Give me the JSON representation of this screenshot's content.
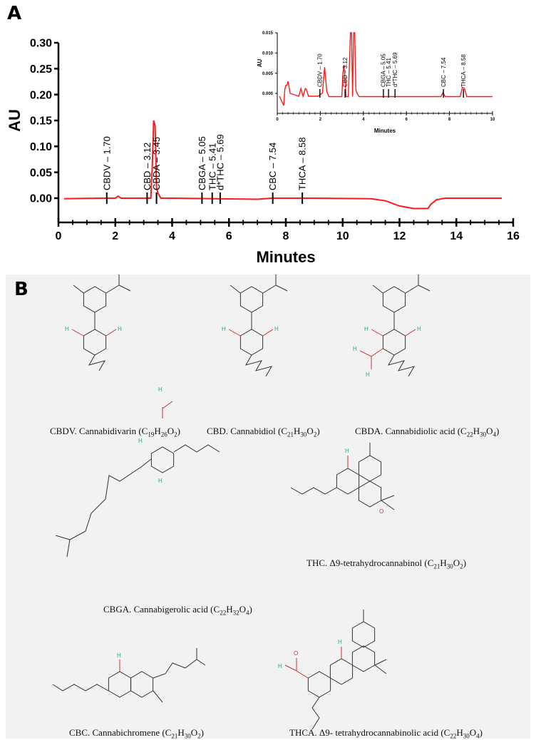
{
  "panel_a": {
    "letter": "A"
  },
  "panel_b": {
    "letter": "B"
  },
  "chart_data": [
    {
      "type": "line",
      "xlabel": "Minutes",
      "ylabel": "AU",
      "xlim": [
        0,
        16
      ],
      "ylim": [
        -0.03,
        0.3
      ],
      "xticks": [
        "0",
        "2",
        "4",
        "6",
        "8",
        "10",
        "12",
        "14",
        "16"
      ],
      "yticks": [
        "0.00",
        "0.05",
        "0.10",
        "0.15",
        "0.20",
        "0.25",
        "0.30"
      ],
      "grid": false,
      "line_color": "#ff1a1a",
      "series": [
        {
          "x": [
            0.2,
            1.5,
            2.0,
            2.1,
            2.2,
            3.0,
            3.25,
            3.3,
            3.35,
            3.4,
            3.45,
            3.5,
            3.6,
            4.0,
            7.0,
            7.5,
            9.0,
            11.0,
            11.5,
            12.0,
            12.5,
            13.0,
            13.1,
            13.3,
            13.6,
            15.6
          ],
          "y": [
            -0.001,
            0,
            0,
            0.004,
            0,
            0,
            0,
            0.06,
            0.15,
            0.14,
            0.02,
            0.01,
            0,
            0,
            -0.002,
            0,
            0,
            -0.001,
            -0.005,
            -0.015,
            -0.02,
            -0.02,
            -0.012,
            -0.003,
            0,
            0
          ]
        }
      ],
      "peak_labels": [
        {
          "label": "CBDV – 1.70",
          "x": 1.7
        },
        {
          "label": "CBD – 3.12",
          "x": 3.12
        },
        {
          "label": "CBDA – 3.45",
          "x": 3.45
        },
        {
          "label": "CBGA – 5.05",
          "x": 5.05
        },
        {
          "label": "THC – 5.41",
          "x": 5.41
        },
        {
          "label": "d*THC – 5.69",
          "x": 5.69
        },
        {
          "label": "CBC – 7.54",
          "x": 7.54
        },
        {
          "label": "THCA – 8.58",
          "x": 8.58
        }
      ]
    },
    {
      "type": "line",
      "xlabel": "Minutes",
      "ylabel": "AU",
      "xlim": [
        0,
        10
      ],
      "ylim": [
        -0.005,
        0.015
      ],
      "xticks": [
        "0",
        "2",
        "4",
        "6",
        "8",
        "10"
      ],
      "yticks": [
        "0.000",
        "0.005",
        "0.010",
        "0.015"
      ],
      "grid": false,
      "line_color": "#ff1a1a",
      "series": [
        {
          "x": [
            0.1,
            0.3,
            0.35,
            0.4,
            0.45,
            0.5,
            0.6,
            1.0,
            1.1,
            1.2,
            1.3,
            1.35,
            1.45,
            1.9,
            2.1,
            2.2,
            2.3,
            2.4,
            3.0,
            3.05,
            3.1,
            3.2,
            3.3,
            3.4,
            3.45,
            3.5,
            3.55,
            3.6,
            3.65,
            3.7,
            3.8,
            4.5,
            7.6,
            7.7,
            7.8,
            8.5,
            8.6,
            8.7,
            8.8,
            10
          ],
          "y": [
            -0.0007,
            -0.003,
            0.001,
            0.002,
            0.002,
            0.003,
            0,
            -0.0007,
            0.0012,
            -0.0007,
            0.0012,
            0.001,
            -0.0007,
            -0.0007,
            0.0001,
            0.0065,
            0.0005,
            -0.0008,
            -0.0008,
            0.005,
            0.007,
            -0.0008,
            -0.0008,
            0.015,
            0.015,
            -0.0008,
            0.015,
            0.015,
            0.001,
            0.0001,
            -0.0008,
            -0.0008,
            -0.0008,
            0.0002,
            -0.0008,
            -0.0008,
            0.0015,
            0.0012,
            -0.0008,
            -0.0008
          ]
        }
      ],
      "peak_labels": [
        {
          "label": "CBDV – 1.70",
          "x": 1.98
        },
        {
          "label": "CBD – 3.12",
          "x": 3.15
        },
        {
          "label": "CBGA – 5.05",
          "x": 4.93
        },
        {
          "label": "THC – 5.41",
          "x": 5.17
        },
        {
          "label": "d*THC – 5.69",
          "x": 5.47
        },
        {
          "label": "CBC – 7.54",
          "x": 7.72
        },
        {
          "label": "THCA – 8.58",
          "x": 8.65
        }
      ]
    }
  ],
  "structures": [
    {
      "abbr": "CBDV",
      "name": "Cannabidivarin",
      "formula": [
        [
          "C",
          "19"
        ],
        [
          "H",
          "26"
        ],
        [
          "O",
          "2"
        ]
      ]
    },
    {
      "abbr": "CBD",
      "name": "Cannabidiol",
      "formula": [
        [
          "C",
          "21"
        ],
        [
          "H",
          "30"
        ],
        [
          "O",
          "2"
        ]
      ]
    },
    {
      "abbr": "CBDA",
      "name": "Cannabidiolic acid",
      "formula": [
        [
          "C",
          "22"
        ],
        [
          "H",
          "30"
        ],
        [
          "O",
          "4"
        ]
      ]
    },
    {
      "abbr": "CBGA",
      "name": "Cannabigerolic acid",
      "formula": [
        [
          "C",
          "22"
        ],
        [
          "H",
          "32"
        ],
        [
          "O",
          "4"
        ]
      ]
    },
    {
      "abbr": "THC",
      "name": "Δ9-tetrahydrocannabinol",
      "formula": [
        [
          "C",
          "21"
        ],
        [
          "H",
          "30"
        ],
        [
          "O",
          "2"
        ]
      ]
    },
    {
      "abbr": "CBC",
      "name": "Cannabichromene",
      "formula": [
        [
          "C",
          "21"
        ],
        [
          "H",
          "30"
        ],
        [
          "O",
          "2"
        ]
      ]
    },
    {
      "abbr": "THCA",
      "name": "Δ9- tetrahydrocannabinolic acid",
      "formula": [
        [
          "C",
          "22"
        ],
        [
          "H",
          "30"
        ],
        [
          "O",
          "4"
        ]
      ]
    }
  ],
  "atom_labels": {
    "oh": "H",
    "o": "O"
  }
}
